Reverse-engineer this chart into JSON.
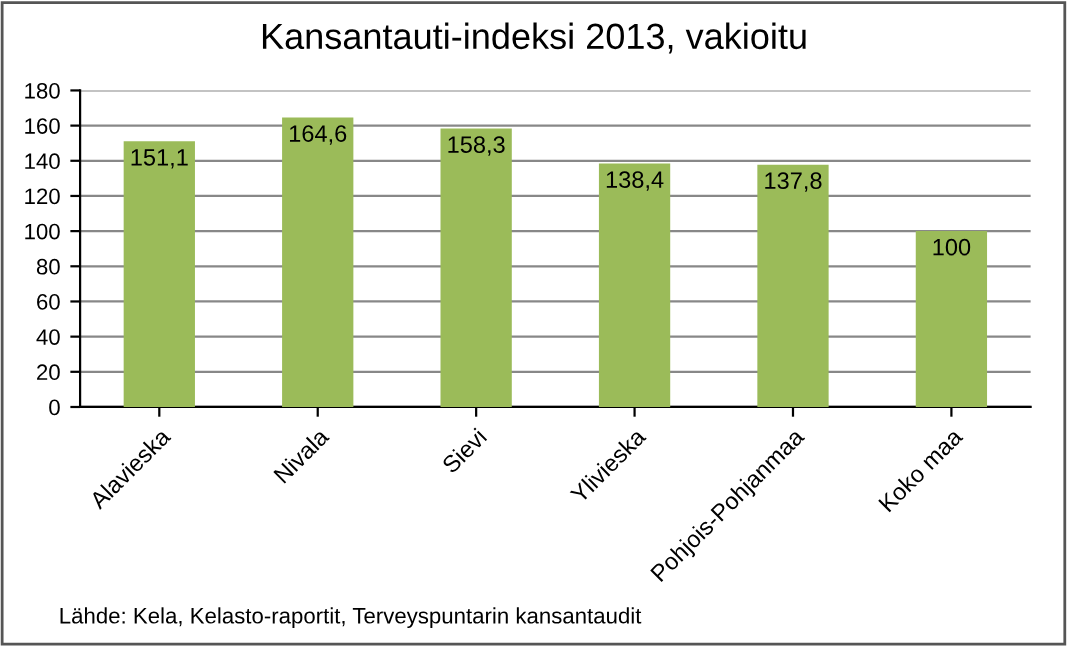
{
  "chart_data": {
    "type": "bar",
    "title": "Kansantauti-indeksi 2013, vakioitu",
    "categories": [
      "Alavieska",
      "Nivala",
      "Sievi",
      "Ylivieska",
      "Pohjois-Pohjanmaa",
      "Koko maa"
    ],
    "values": [
      151.1,
      164.6,
      158.3,
      138.4,
      137.8,
      100
    ],
    "value_labels": [
      "151,1",
      "164,6",
      "158,3",
      "138,4",
      "137,8",
      "100"
    ],
    "color": "#9bbb59",
    "ylim": [
      0,
      180
    ],
    "yticks": [
      0,
      20,
      40,
      60,
      80,
      100,
      120,
      140,
      160,
      180
    ],
    "grid": "y",
    "annotations": [
      "Lähde: Kela, Kelasto-raportit, Terveyspuntarin kansantaudit"
    ]
  }
}
